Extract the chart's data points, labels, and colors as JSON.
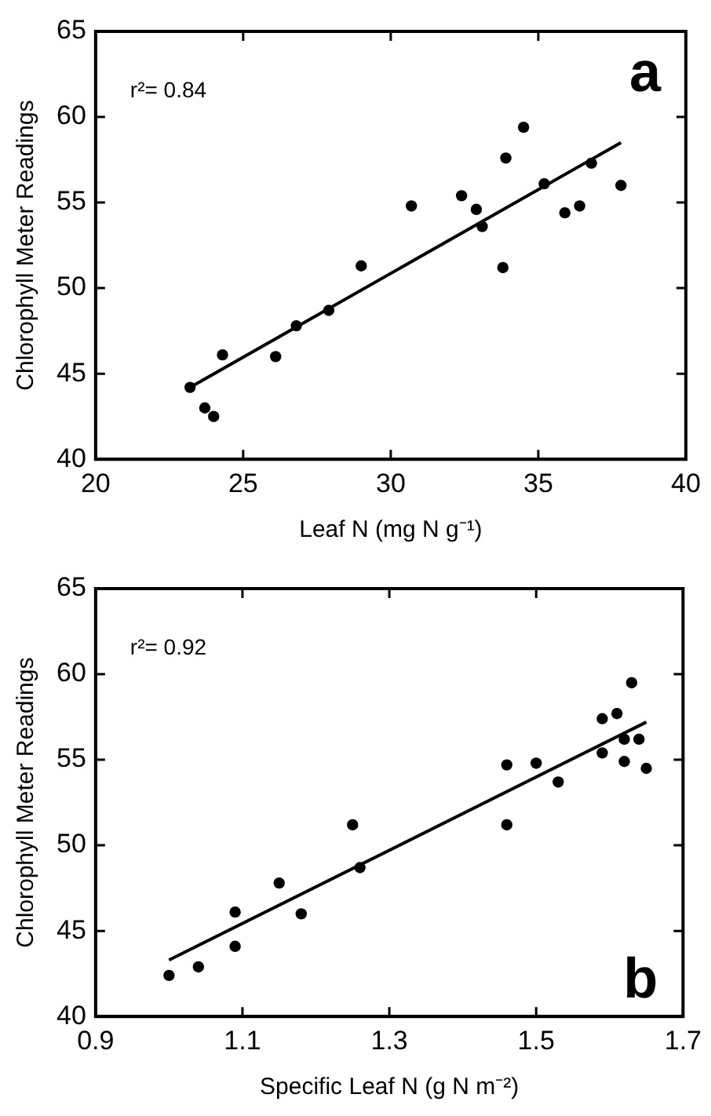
{
  "chart_data": [
    {
      "type": "scatter",
      "xlabel": "Leaf N (mg N g⁻¹)",
      "ylabel": "Chlorophyll Meter Readings",
      "annotations": [
        "r²= 0.84",
        "a"
      ],
      "xlim": [
        20,
        40
      ],
      "xticks": [
        20,
        25,
        30,
        35,
        40
      ],
      "ylim": [
        40,
        65
      ],
      "yticks": [
        40,
        45,
        50,
        55,
        60,
        65
      ],
      "grid": false,
      "legend": false,
      "marker": "circle",
      "series": [
        {
          "type": "scatter",
          "color": "#000000",
          "x": [
            23.2,
            23.7,
            24.0,
            24.3,
            26.1,
            26.8,
            27.9,
            29.0,
            30.7,
            32.4,
            32.9,
            33.1,
            33.8,
            33.9,
            34.5,
            35.2,
            35.9,
            36.4,
            36.8,
            37.8
          ],
          "values": [
            44.2,
            43.0,
            42.5,
            46.1,
            46.0,
            47.8,
            48.7,
            51.3,
            54.8,
            55.4,
            54.6,
            53.6,
            51.2,
            57.6,
            59.4,
            56.1,
            54.4,
            54.8,
            57.3,
            56.0
          ]
        },
        {
          "type": "line",
          "color": "#000000",
          "marker": "none",
          "line_style": "solid",
          "x": [
            23.2,
            37.8
          ],
          "values": [
            44.2,
            58.5
          ]
        }
      ]
    },
    {
      "type": "scatter",
      "xlabel": "Specific Leaf N (g N m⁻²)",
      "ylabel": "Chlorophyll Meter Readings",
      "annotations": [
        "r²= 0.92",
        "b"
      ],
      "xlim": [
        0.9,
        1.7
      ],
      "xticks": [
        0.9,
        1.1,
        1.3,
        1.5,
        1.7
      ],
      "ylim": [
        40,
        65
      ],
      "yticks": [
        40,
        45,
        50,
        55,
        60,
        65
      ],
      "grid": false,
      "legend": false,
      "marker": "circle",
      "series": [
        {
          "type": "scatter",
          "color": "#000000",
          "x": [
            1.0,
            1.04,
            1.09,
            1.09,
            1.15,
            1.18,
            1.25,
            1.26,
            1.46,
            1.46,
            1.5,
            1.53,
            1.59,
            1.59,
            1.61,
            1.62,
            1.62,
            1.63,
            1.64,
            1.65
          ],
          "values": [
            42.4,
            42.9,
            46.1,
            44.1,
            47.8,
            46.0,
            51.2,
            48.7,
            54.7,
            51.2,
            54.8,
            53.7,
            57.4,
            55.4,
            57.7,
            56.2,
            54.9,
            59.5,
            56.2,
            54.5
          ]
        },
        {
          "type": "line",
          "color": "#000000",
          "marker": "none",
          "line_style": "solid",
          "x": [
            1.0,
            1.65
          ],
          "values": [
            43.3,
            57.2
          ]
        }
      ]
    }
  ]
}
